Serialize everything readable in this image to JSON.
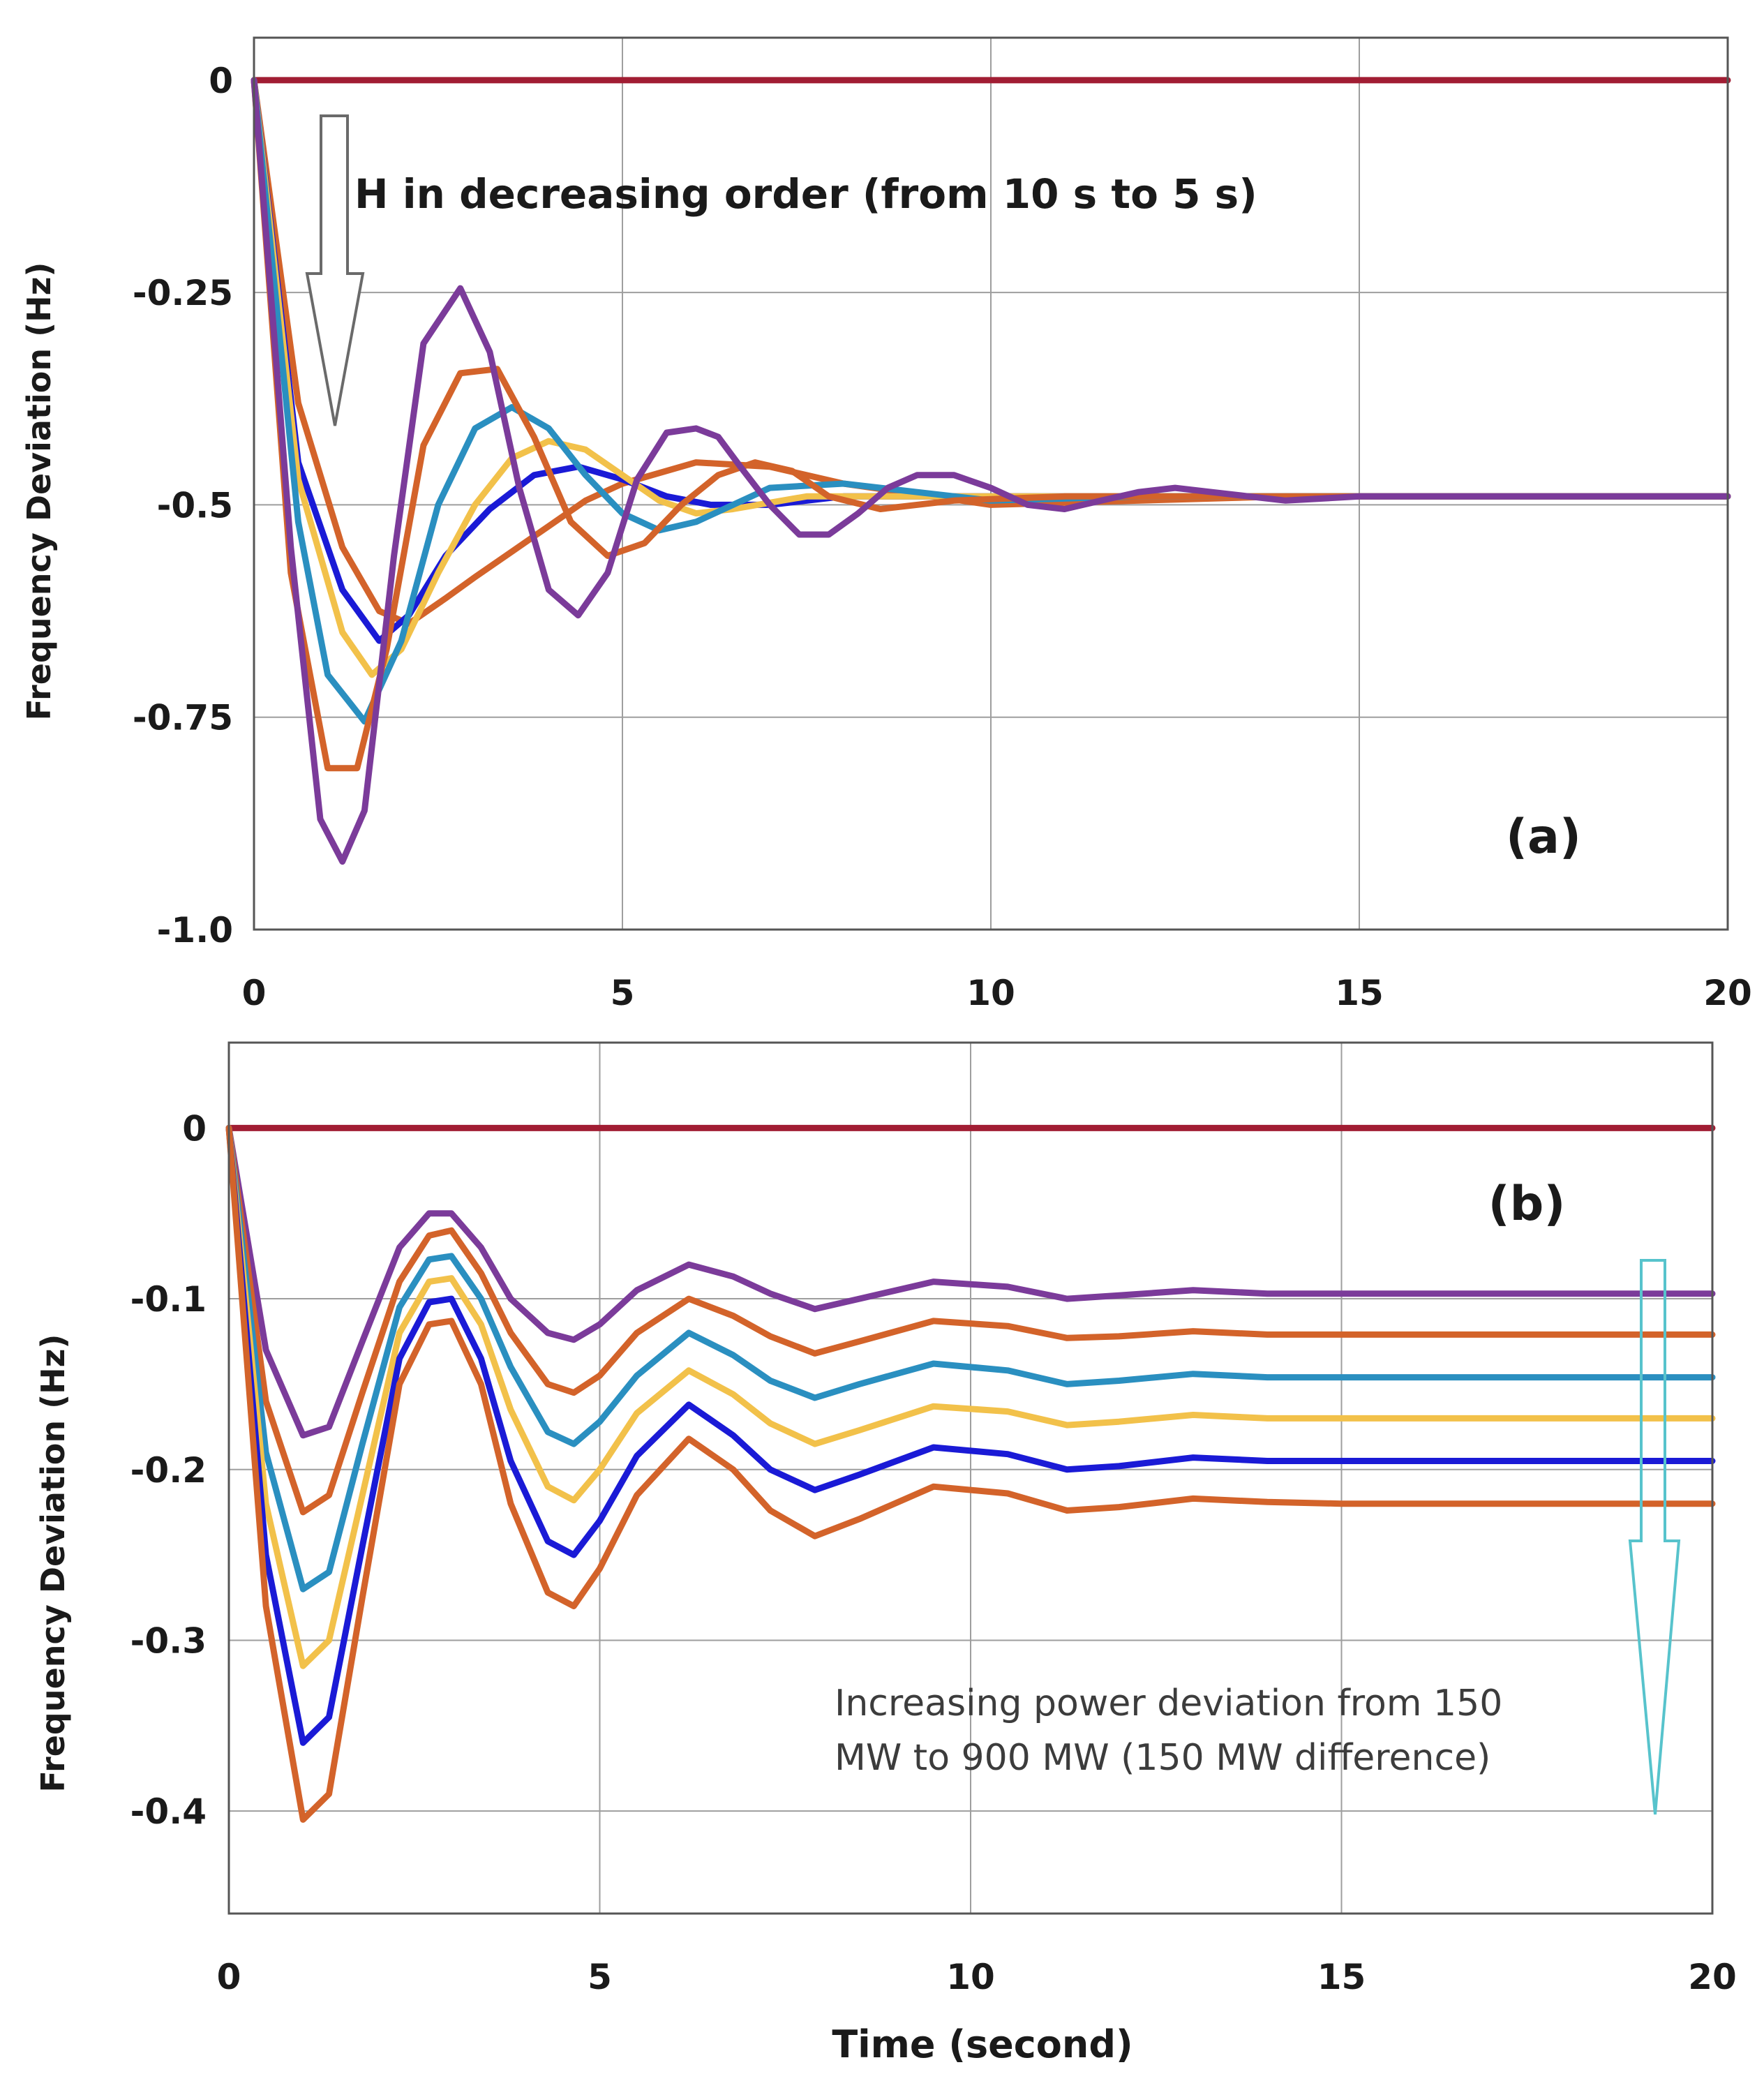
{
  "chart_data": [
    {
      "type": "line",
      "panel_label": "(a)",
      "title": "",
      "xlabel": "",
      "ylabel": "Frequency Deviation (Hz)",
      "xlim": [
        0,
        20
      ],
      "ylim": [
        -1.0,
        0.05
      ],
      "x_ticks": [
        0,
        5,
        10,
        15,
        20
      ],
      "y_ticks": [
        0,
        -0.25,
        -0.5,
        -0.75,
        -1.0
      ],
      "y_tick_labels": [
        "0",
        "-0.25",
        "-0.5",
        "-0.75",
        "-1.0"
      ],
      "grid": true,
      "legend": "none",
      "annotation": {
        "text": "H in decreasing order (from 10 s to 5 s)",
        "arrow": "down",
        "arrow_color": "#6a6a6a"
      },
      "series": [
        {
          "color": "#a11d33",
          "x": [
            0,
            20
          ],
          "y": [
            0,
            0
          ]
        },
        {
          "color": "#d3632a",
          "x": [
            0,
            0.6,
            1.2,
            1.7,
            2.1,
            2.6,
            3.0,
            3.5,
            4.0,
            4.5,
            5.0,
            6.0,
            7.0,
            8.0,
            10.0,
            14.0,
            20.0
          ],
          "y": [
            0,
            -0.38,
            -0.55,
            -0.625,
            -0.64,
            -0.61,
            -0.585,
            -0.555,
            -0.525,
            -0.495,
            -0.475,
            -0.45,
            -0.455,
            -0.475,
            -0.5,
            -0.49,
            -0.49
          ]
        },
        {
          "color": "#1a1ad6",
          "x": [
            0,
            0.6,
            1.2,
            1.7,
            2.1,
            2.6,
            3.2,
            3.8,
            4.4,
            5.0,
            5.6,
            6.2,
            7.0,
            8.0,
            10.0,
            14.0,
            20.0
          ],
          "y": [
            0,
            -0.45,
            -0.6,
            -0.66,
            -0.63,
            -0.56,
            -0.505,
            -0.465,
            -0.455,
            -0.47,
            -0.49,
            -0.5,
            -0.5,
            -0.49,
            -0.49,
            -0.49,
            -0.49
          ]
        },
        {
          "color": "#f2c14a",
          "x": [
            0,
            0.6,
            1.2,
            1.6,
            2.0,
            2.5,
            3.0,
            3.5,
            4.0,
            4.5,
            5.0,
            5.5,
            6.0,
            6.5,
            7.5,
            9.0,
            12.0,
            20.0
          ],
          "y": [
            0,
            -0.47,
            -0.65,
            -0.7,
            -0.67,
            -0.58,
            -0.5,
            -0.445,
            -0.425,
            -0.435,
            -0.465,
            -0.495,
            -0.51,
            -0.505,
            -0.49,
            -0.49,
            -0.49,
            -0.49
          ]
        },
        {
          "color": "#2a8fc0",
          "x": [
            0,
            0.6,
            1.0,
            1.5,
            2.0,
            2.5,
            3.0,
            3.5,
            4.0,
            4.5,
            5.0,
            5.5,
            6.0,
            6.5,
            7.0,
            8.0,
            9.0,
            10.0,
            12.0,
            20.0
          ],
          "y": [
            0,
            -0.52,
            -0.7,
            -0.755,
            -0.66,
            -0.5,
            -0.41,
            -0.385,
            -0.41,
            -0.465,
            -0.51,
            -0.53,
            -0.52,
            -0.5,
            -0.48,
            -0.475,
            -0.485,
            -0.495,
            -0.49,
            -0.49
          ]
        },
        {
          "color": "#d3632a",
          "x": [
            0,
            0.5,
            1.0,
            1.4,
            1.8,
            2.3,
            2.8,
            3.3,
            3.8,
            4.3,
            4.8,
            5.3,
            5.8,
            6.3,
            6.8,
            7.3,
            7.8,
            8.5,
            9.5,
            11.0,
            20.0
          ],
          "y": [
            0,
            -0.58,
            -0.81,
            -0.81,
            -0.67,
            -0.43,
            -0.345,
            -0.34,
            -0.42,
            -0.52,
            -0.56,
            -0.545,
            -0.5,
            -0.465,
            -0.45,
            -0.46,
            -0.49,
            -0.505,
            -0.495,
            -0.49,
            -0.49
          ]
        },
        {
          "color": "#7b3b9a",
          "x": [
            0,
            0.5,
            0.9,
            1.2,
            1.5,
            1.9,
            2.3,
            2.8,
            3.2,
            3.6,
            4.0,
            4.4,
            4.8,
            5.2,
            5.6,
            6.0,
            6.3,
            6.6,
            7.0,
            7.4,
            7.8,
            8.2,
            8.6,
            9.0,
            9.5,
            10.0,
            10.5,
            11.0,
            11.5,
            12.0,
            12.5,
            13.0,
            13.5,
            14.0,
            15.0,
            20.0
          ],
          "y": [
            0,
            -0.55,
            -0.87,
            -0.92,
            -0.86,
            -0.56,
            -0.31,
            -0.245,
            -0.32,
            -0.48,
            -0.6,
            -0.63,
            -0.58,
            -0.47,
            -0.415,
            -0.41,
            -0.42,
            -0.455,
            -0.5,
            -0.535,
            -0.535,
            -0.51,
            -0.48,
            -0.465,
            -0.465,
            -0.48,
            -0.5,
            -0.505,
            -0.495,
            -0.485,
            -0.48,
            -0.485,
            -0.49,
            -0.495,
            -0.49,
            -0.49
          ]
        }
      ]
    },
    {
      "type": "line",
      "panel_label": "(b)",
      "title": "",
      "xlabel": "Time (second)",
      "ylabel": "Frequency Deviation (Hz)",
      "xlim": [
        0,
        20
      ],
      "ylim": [
        -0.46,
        0.05
      ],
      "x_ticks": [
        0,
        5,
        10,
        15,
        20
      ],
      "y_ticks": [
        0,
        -0.1,
        -0.2,
        -0.3,
        -0.4
      ],
      "y_tick_labels": [
        "0",
        "-0.1",
        "-0.2",
        "-0.3",
        "-0.4"
      ],
      "grid": true,
      "legend": "none",
      "annotation": {
        "text_line1": "Increasing power deviation from 150",
        "text_line2": "MW to 900 MW (150 MW difference)",
        "arrow": "down",
        "arrow_color": "#57c3cc"
      },
      "x": [
        0,
        0.5,
        1.0,
        1.35,
        1.8,
        2.3,
        2.7,
        3.0,
        3.4,
        3.8,
        4.3,
        4.65,
        5.0,
        5.5,
        6.2,
        6.8,
        7.3,
        7.9,
        8.5,
        9.5,
        10.5,
        11.3,
        12.0,
        13.0,
        14.0,
        15.0,
        16.0,
        17.0,
        18.0,
        19.0,
        20.0
      ],
      "series": [
        {
          "color": "#a11d33",
          "y_const": 0
        },
        {
          "color": "#7b3b9a",
          "y": [
            0,
            -0.13,
            -0.18,
            -0.175,
            -0.125,
            -0.07,
            -0.05,
            -0.05,
            -0.07,
            -0.1,
            -0.12,
            -0.124,
            -0.115,
            -0.095,
            -0.08,
            -0.087,
            -0.097,
            -0.106,
            -0.1,
            -0.09,
            -0.093,
            -0.1,
            -0.098,
            -0.095,
            -0.097,
            -0.097,
            -0.097,
            -0.097,
            -0.097,
            -0.097,
            -0.097
          ]
        },
        {
          "color": "#d3632a",
          "y": [
            0,
            -0.16,
            -0.225,
            -0.215,
            -0.155,
            -0.09,
            -0.063,
            -0.06,
            -0.085,
            -0.12,
            -0.15,
            -0.155,
            -0.145,
            -0.12,
            -0.1,
            -0.11,
            -0.122,
            -0.132,
            -0.125,
            -0.113,
            -0.116,
            -0.123,
            -0.122,
            -0.119,
            -0.121,
            -0.121,
            -0.121,
            -0.121,
            -0.121,
            -0.121,
            -0.121
          ]
        },
        {
          "color": "#2a8fc0",
          "y": [
            0,
            -0.19,
            -0.27,
            -0.26,
            -0.185,
            -0.105,
            -0.077,
            -0.075,
            -0.1,
            -0.14,
            -0.178,
            -0.185,
            -0.172,
            -0.145,
            -0.12,
            -0.133,
            -0.148,
            -0.158,
            -0.15,
            -0.138,
            -0.142,
            -0.15,
            -0.148,
            -0.144,
            -0.146,
            -0.146,
            -0.146,
            -0.146,
            -0.146,
            -0.146,
            -0.146
          ]
        },
        {
          "color": "#f2c14a",
          "y": [
            0,
            -0.22,
            -0.315,
            -0.3,
            -0.215,
            -0.12,
            -0.09,
            -0.088,
            -0.115,
            -0.165,
            -0.21,
            -0.218,
            -0.2,
            -0.167,
            -0.142,
            -0.156,
            -0.173,
            -0.185,
            -0.177,
            -0.163,
            -0.166,
            -0.174,
            -0.172,
            -0.168,
            -0.17,
            -0.17,
            -0.17,
            -0.17,
            -0.17,
            -0.17,
            -0.17
          ]
        },
        {
          "color": "#1a1ad6",
          "y": [
            0,
            -0.25,
            -0.36,
            -0.345,
            -0.245,
            -0.135,
            -0.102,
            -0.1,
            -0.135,
            -0.195,
            -0.242,
            -0.25,
            -0.23,
            -0.192,
            -0.162,
            -0.18,
            -0.2,
            -0.212,
            -0.203,
            -0.187,
            -0.191,
            -0.2,
            -0.198,
            -0.193,
            -0.195,
            -0.195,
            -0.195,
            -0.195,
            -0.195,
            -0.195,
            -0.195
          ]
        },
        {
          "color": "#d3632a",
          "y": [
            0,
            -0.28,
            -0.405,
            -0.39,
            -0.275,
            -0.15,
            -0.115,
            -0.113,
            -0.15,
            -0.22,
            -0.272,
            -0.28,
            -0.258,
            -0.215,
            -0.182,
            -0.2,
            -0.224,
            -0.239,
            -0.229,
            -0.21,
            -0.214,
            -0.224,
            -0.222,
            -0.217,
            -0.219,
            -0.22,
            -0.22,
            -0.22,
            -0.22,
            -0.22,
            -0.22
          ]
        }
      ]
    }
  ]
}
